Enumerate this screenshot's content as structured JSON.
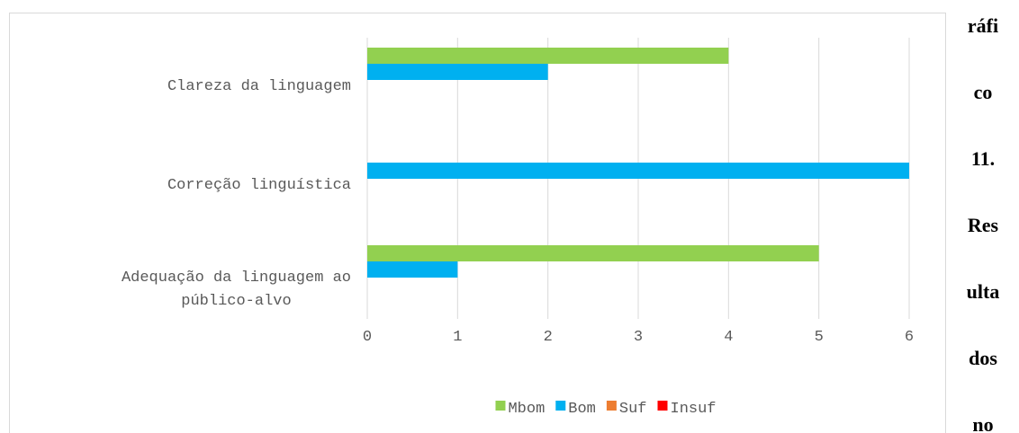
{
  "chart_data": {
    "type": "bar",
    "orientation": "horizontal",
    "categories": [
      "Clareza da linguagem",
      "Correção linguística",
      "Adequação da linguagem ao público-alvo"
    ],
    "series": [
      {
        "name": "Mbom",
        "color": "#92d050",
        "values": [
          4,
          0,
          5
        ]
      },
      {
        "name": "Bom",
        "color": "#00b0f0",
        "values": [
          2,
          6,
          1
        ]
      },
      {
        "name": "Suf",
        "color": "#ed7d31",
        "values": [
          0,
          0,
          0
        ]
      },
      {
        "name": "Insuf",
        "color": "#ff0000",
        "values": [
          0,
          0,
          0
        ]
      }
    ],
    "xlim": [
      0,
      6
    ],
    "xticks": [
      0,
      1,
      2,
      3,
      4,
      5,
      6
    ],
    "grid": true,
    "legend": "bottom"
  },
  "side_text": [
    "ráfi",
    "co",
    "11.",
    "Res",
    "ulta",
    "dos",
    "no"
  ]
}
